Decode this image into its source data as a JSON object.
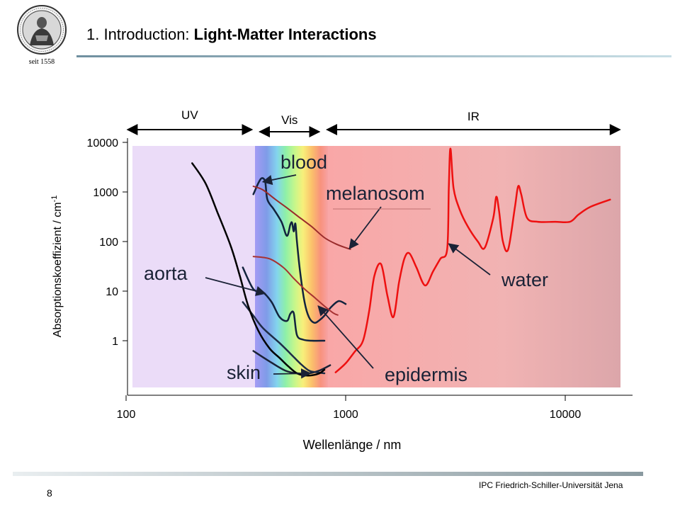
{
  "header": {
    "title_prefix": "1. Introduction: ",
    "title_bold": "Light-Matter Interactions",
    "logo_caption": "seit 1558",
    "logo_icon": "university-seal-icon"
  },
  "footer": {
    "page_number": "8",
    "institution": "IPC Friedrich-Schiller-Universität  Jena"
  },
  "chart_data": {
    "type": "line",
    "x_scale": "log",
    "y_scale": "log",
    "xlabel": "Wellenlänge / nm",
    "ylabel_main": "Absorptionskoeffizient / cm",
    "ylabel_sup": "-1",
    "xlim": [
      100,
      20000
    ],
    "ylim": [
      0.05,
      10000
    ],
    "x_ticks": [
      {
        "value": 100,
        "label": "100"
      },
      {
        "value": 1000,
        "label": "1000"
      },
      {
        "value": 10000,
        "label": "10000"
      }
    ],
    "y_ticks": [
      {
        "value": 1,
        "label": "1"
      },
      {
        "value": 10,
        "label": "10"
      },
      {
        "value": 100,
        "label": "100"
      },
      {
        "value": 1000,
        "label": "1000"
      },
      {
        "value": 10000,
        "label": "10000"
      }
    ],
    "regions": [
      {
        "label": "UV",
        "from": 100,
        "to": 380
      },
      {
        "label": "Vis",
        "from": 400,
        "to": 770
      },
      {
        "label": "IR",
        "from": 810,
        "to": 18000
      }
    ],
    "colors": {
      "uv_band": "#ebdcf8",
      "ir_band": "#f9a8a8",
      "skin": "#1a2236",
      "aorta": "#1e2c46",
      "blood": "#12233e",
      "melanosom": "#9a2b2b",
      "epidermis": "#a73232",
      "water": "#ee1010",
      "uv_curve": "#dc3b5a"
    },
    "series": [
      {
        "name": "skin",
        "points": [
          [
            380,
            0.62
          ],
          [
            460,
            0.36
          ],
          [
            530,
            0.25
          ],
          [
            600,
            0.22
          ],
          [
            680,
            0.22
          ],
          [
            760,
            0.25
          ],
          [
            850,
            0.32
          ]
        ]
      },
      {
        "name": "aorta",
        "points": [
          [
            340,
            6
          ],
          [
            380,
            3.2
          ],
          [
            420,
            1.8
          ],
          [
            500,
            0.9
          ],
          [
            560,
            0.55
          ],
          [
            620,
            0.35
          ],
          [
            680,
            0.25
          ],
          [
            740,
            0.23
          ],
          [
            800,
            0.22
          ]
        ]
      },
      {
        "name": "blood",
        "points": [
          [
            380,
            900
          ],
          [
            400,
            1500
          ],
          [
            415,
            1900
          ],
          [
            430,
            1600
          ],
          [
            440,
            700
          ],
          [
            470,
            450
          ],
          [
            510,
            250
          ],
          [
            540,
            130
          ],
          [
            560,
            220
          ],
          [
            570,
            240
          ],
          [
            580,
            160
          ],
          [
            590,
            230
          ],
          [
            600,
            100
          ],
          [
            620,
            25
          ],
          [
            650,
            6
          ],
          [
            680,
            3
          ],
          [
            720,
            2.3
          ],
          [
            760,
            2.6
          ],
          [
            800,
            3.2
          ],
          [
            860,
            4.8
          ],
          [
            930,
            6.3
          ],
          [
            1000,
            5.5
          ]
        ]
      },
      {
        "name": "blood-low",
        "points": [
          [
            340,
            30
          ],
          [
            380,
            11
          ],
          [
            420,
            9.5
          ],
          [
            460,
            6
          ],
          [
            500,
            3
          ],
          [
            540,
            2.5
          ],
          [
            560,
            3.5
          ],
          [
            580,
            3.6
          ],
          [
            600,
            1.3
          ],
          [
            640,
            1.05
          ],
          [
            700,
            1
          ],
          [
            800,
            1
          ]
        ]
      },
      {
        "name": "melanosom",
        "points": [
          [
            380,
            1300
          ],
          [
            420,
            1100
          ],
          [
            480,
            700
          ],
          [
            550,
            450
          ],
          [
            620,
            300
          ],
          [
            700,
            200
          ],
          [
            800,
            120
          ],
          [
            900,
            90
          ],
          [
            1000,
            75
          ],
          [
            1050,
            70
          ]
        ]
      },
      {
        "name": "epidermis",
        "points": [
          [
            380,
            50
          ],
          [
            450,
            45
          ],
          [
            520,
            30
          ],
          [
            580,
            18
          ],
          [
            650,
            11
          ],
          [
            720,
            7.5
          ],
          [
            800,
            5
          ],
          [
            880,
            3.6
          ],
          [
            920,
            3.3
          ]
        ]
      },
      {
        "name": "water",
        "points": [
          [
            900,
            0.23
          ],
          [
            1000,
            0.35
          ],
          [
            1100,
            0.6
          ],
          [
            1200,
            1.0
          ],
          [
            1280,
            4
          ],
          [
            1350,
            20
          ],
          [
            1450,
            35
          ],
          [
            1550,
            8
          ],
          [
            1650,
            3
          ],
          [
            1750,
            15
          ],
          [
            1850,
            45
          ],
          [
            1950,
            58
          ],
          [
            2100,
            30
          ],
          [
            2300,
            13
          ],
          [
            2500,
            25
          ],
          [
            2700,
            45
          ],
          [
            2900,
            70
          ],
          [
            2950,
            1200
          ],
          [
            3000,
            7500
          ],
          [
            3100,
            1200
          ],
          [
            3300,
            450
          ],
          [
            3600,
            200
          ],
          [
            4000,
            100
          ],
          [
            4300,
            75
          ],
          [
            4700,
            300
          ],
          [
            4850,
            800
          ],
          [
            5000,
            400
          ],
          [
            5200,
            100
          ],
          [
            5500,
            70
          ],
          [
            5900,
            500
          ],
          [
            6100,
            1300
          ],
          [
            6300,
            900
          ],
          [
            6700,
            300
          ],
          [
            7500,
            250
          ],
          [
            9000,
            250
          ],
          [
            10500,
            250
          ],
          [
            11500,
            350
          ],
          [
            13000,
            500
          ],
          [
            16000,
            700
          ]
        ]
      },
      {
        "name": "uv",
        "points": [
          [
            200,
            3800
          ],
          [
            230,
            1500
          ],
          [
            260,
            400
          ],
          [
            300,
            80
          ],
          [
            330,
            20
          ],
          [
            360,
            5
          ],
          [
            400,
            1.6
          ],
          [
            450,
            0.7
          ],
          [
            500,
            0.45
          ],
          [
            550,
            0.3
          ],
          [
            600,
            0.22
          ],
          [
            650,
            0.2
          ],
          [
            700,
            0.2
          ],
          [
            760,
            0.22
          ],
          [
            800,
            0.26
          ]
        ]
      }
    ],
    "annotations": [
      {
        "text": "blood",
        "arrow_to": [
          420,
          1600
        ]
      },
      {
        "text": "melanosom",
        "arrow_to": [
          1040,
          72
        ]
      },
      {
        "text": "aorta",
        "arrow_to": [
          430,
          9
        ]
      },
      {
        "text": "water",
        "arrow_to": [
          2950,
          90
        ]
      },
      {
        "text": "skin",
        "arrow_to": [
          690,
          0.22
        ]
      },
      {
        "text": "epidermis",
        "arrow_to": [
          750,
          5
        ]
      }
    ]
  }
}
